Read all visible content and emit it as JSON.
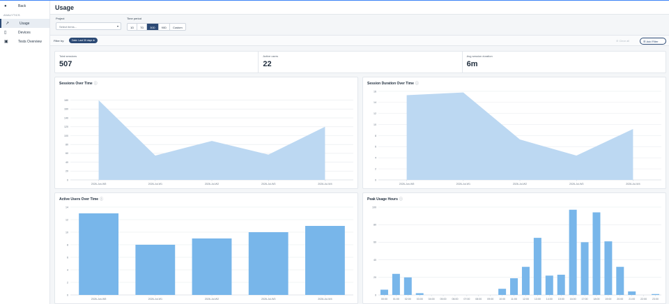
{
  "sidebar": {
    "back_label": "Back",
    "section_label": "ANALYTICS",
    "items": [
      {
        "label": "Usage",
        "icon": "trend-icon"
      },
      {
        "label": "Devices",
        "icon": "device-icon"
      },
      {
        "label": "Tests Overview",
        "icon": "tests-icon"
      }
    ]
  },
  "header": {
    "title": "Usage"
  },
  "controls": {
    "project_label": "Project",
    "project_placeholder": "Select items...",
    "time_label": "Time period",
    "time_options": [
      "1D",
      "7D",
      "30D",
      "90D",
      "Custom"
    ],
    "time_selected": "30D"
  },
  "filters": {
    "label": "Filter by:",
    "chip": "Date: Last 30 days",
    "clear_label": "Clear all",
    "add_label": "Add Filter"
  },
  "stats": [
    {
      "label": "Total sessions",
      "value": "507"
    },
    {
      "label": "Active users",
      "value": "22"
    },
    {
      "label": "Avg session duration",
      "value": "6m"
    }
  ],
  "colors": {
    "area": "#bcd8f2",
    "bar": "#78b6ea",
    "accent": "#2c4a75"
  },
  "chart_data": [
    {
      "type": "area",
      "title": "Sessions Over Time",
      "categories": [
        "2026-Jun-W5",
        "2026-Jul-W1",
        "2026-Jul-W2",
        "2026-Jul-W3",
        "2026-Jul-W4"
      ],
      "values": [
        180,
        55,
        88,
        57,
        120
      ],
      "yticks": [
        0,
        20,
        40,
        60,
        80,
        100,
        120,
        140,
        160,
        180
      ],
      "ylim": [
        0,
        200
      ]
    },
    {
      "type": "area",
      "title": "Session Duration Over Time",
      "categories": [
        "2026-Jun-W5",
        "2026-Jul-W1",
        "2026-Jul-W2",
        "2026-Jul-W3",
        "2026-Jul-W4"
      ],
      "values": [
        15.3,
        15.8,
        7.3,
        4.4,
        9.2
      ],
      "yticks": [
        0,
        2,
        4,
        6,
        8,
        10,
        12,
        14,
        16
      ],
      "ylim": [
        0,
        16
      ]
    },
    {
      "type": "bar",
      "title": "Active Users Over Time",
      "categories": [
        "2026-Jun-W5",
        "2026-Jul-W1",
        "2026-Jul-W2",
        "2026-Jul-W3",
        "2026-Jul-W4"
      ],
      "values": [
        13,
        8,
        9,
        10,
        11
      ],
      "yticks": [
        0,
        2,
        4,
        6,
        8,
        10,
        12,
        14
      ],
      "ylim": [
        0,
        14
      ]
    },
    {
      "type": "bar",
      "title": "Peak Usage Hours",
      "categories": [
        "00:00",
        "01:00",
        "02:00",
        "03:00",
        "04:00",
        "05:00",
        "06:00",
        "07:00",
        "08:00",
        "09:00",
        "10:00",
        "11:00",
        "12:00",
        "13:00",
        "14:00",
        "15:00",
        "16:00",
        "17:00",
        "18:00",
        "19:00",
        "20:00",
        "21:00",
        "22:00",
        "23:00"
      ],
      "values": [
        6,
        24,
        20,
        2,
        0,
        0,
        0,
        0,
        0,
        0,
        7,
        19,
        32,
        65,
        22,
        23,
        97,
        60,
        94,
        61,
        32,
        4,
        0,
        1
      ],
      "yticks": [
        0,
        20,
        40,
        60,
        80,
        100
      ],
      "ylim": [
        0,
        100
      ]
    }
  ]
}
